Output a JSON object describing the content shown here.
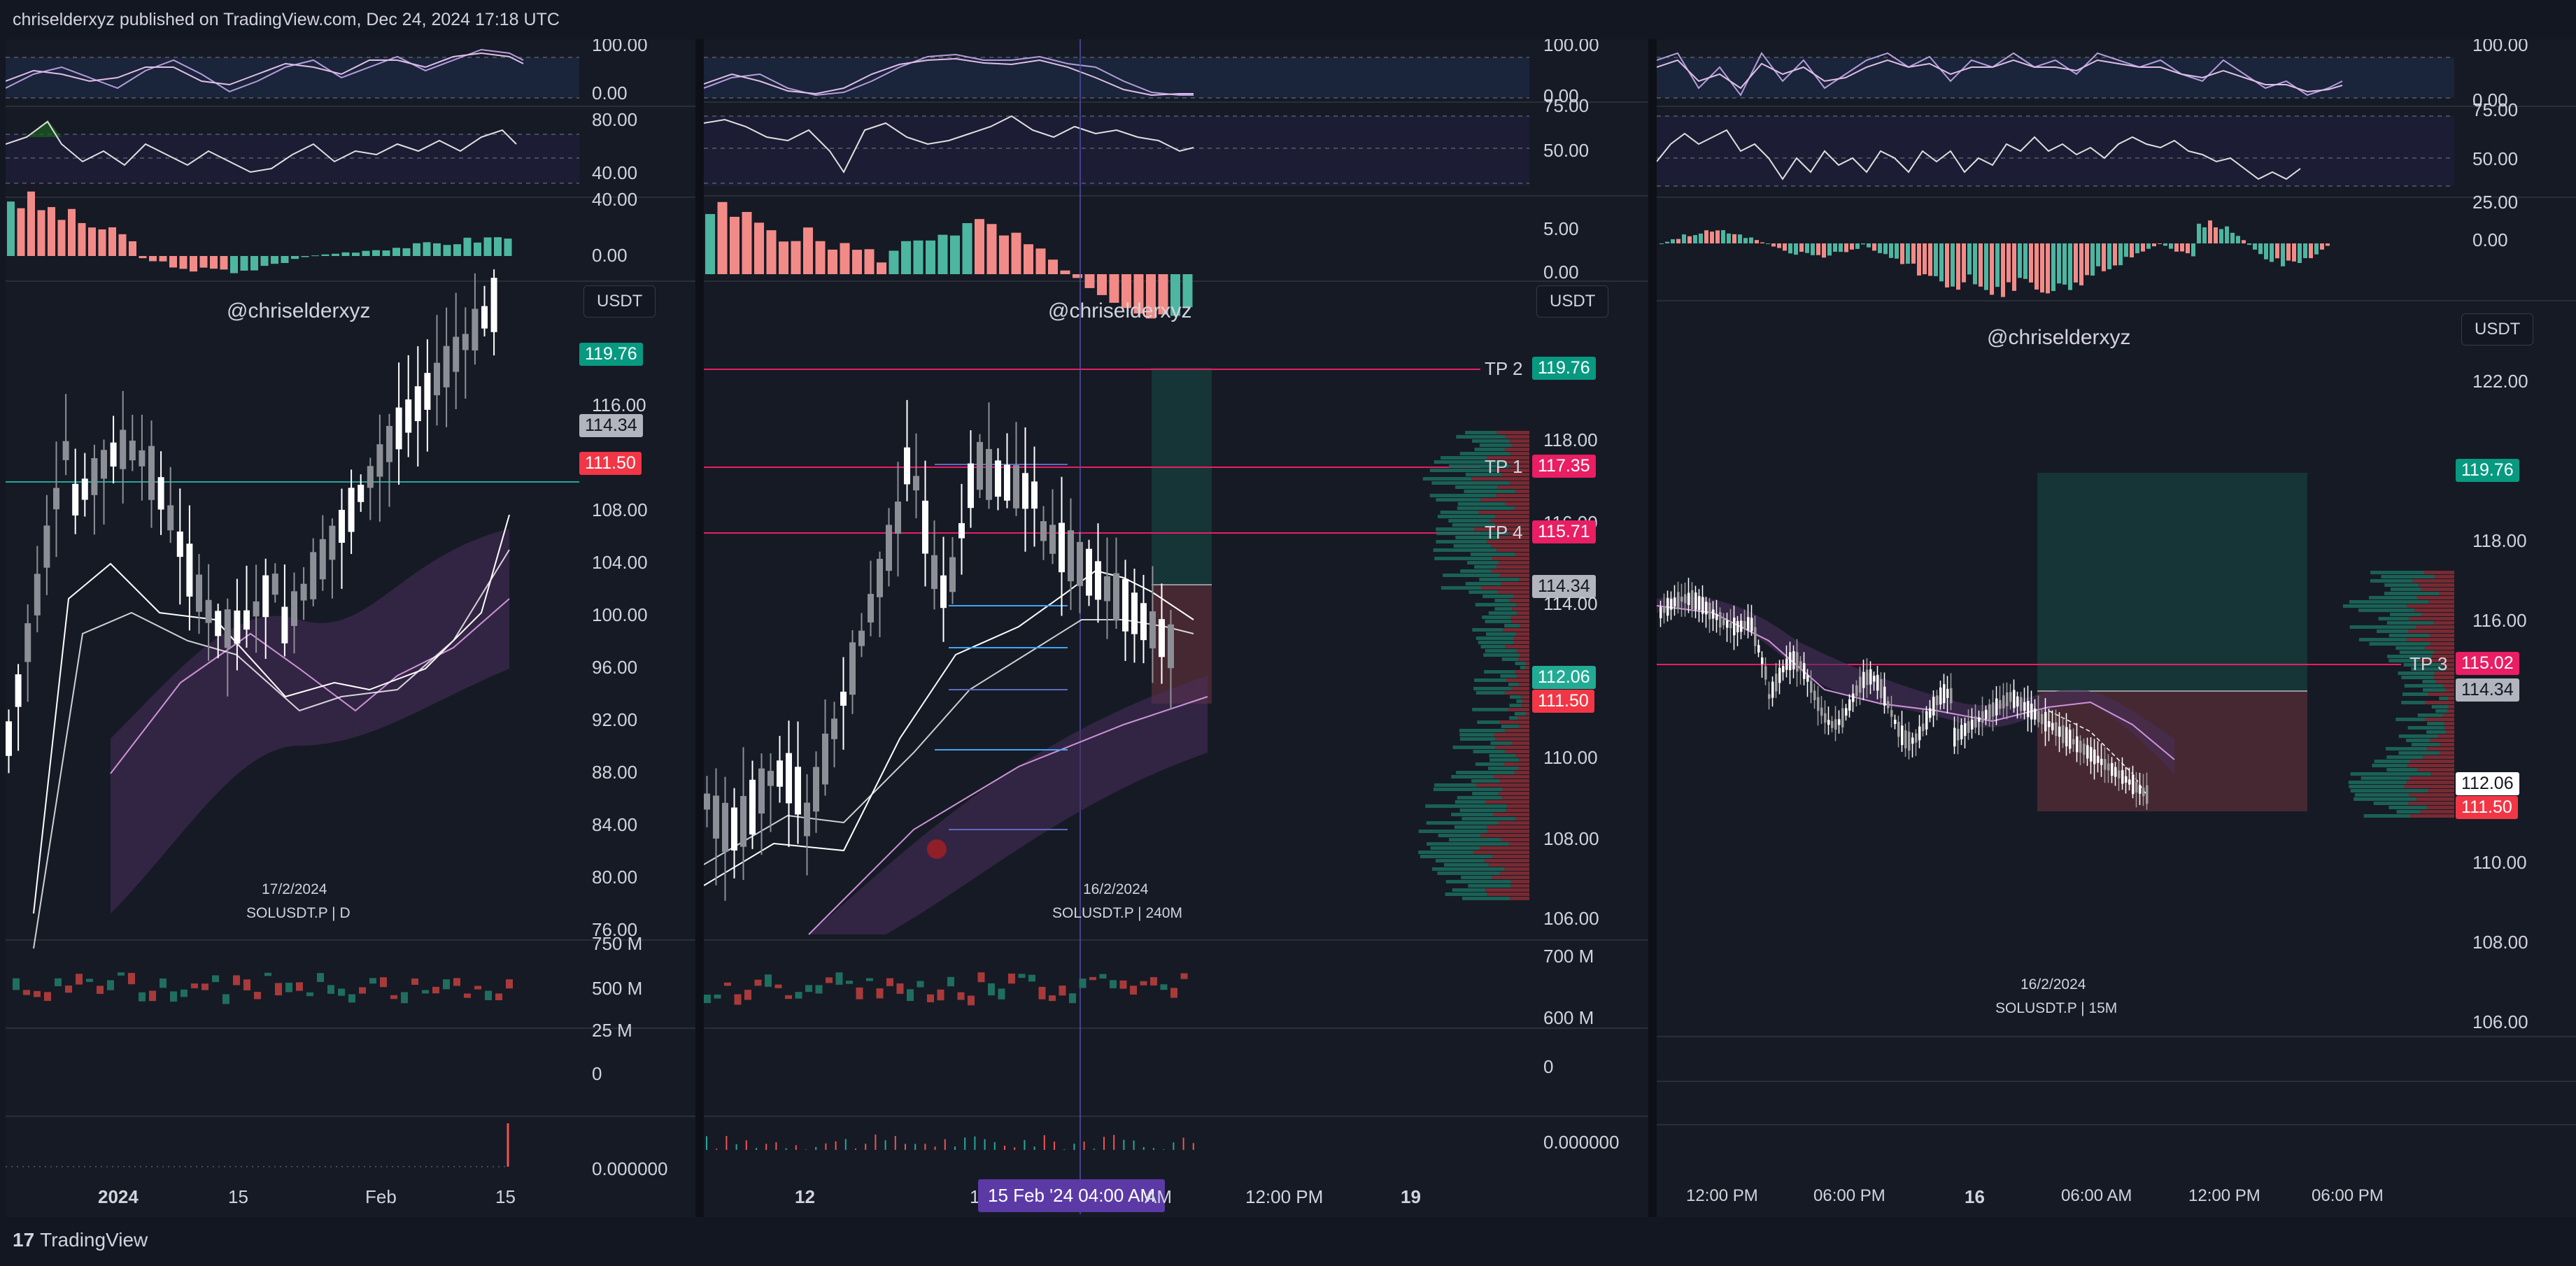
{
  "header": {
    "publish_text": "chriselderxyz published on TradingView.com, Dec 24, 2024 17:18 UTC"
  },
  "footer": {
    "brand": "TradingView",
    "logo_glyph": "17"
  },
  "colors": {
    "bg": "#131722",
    "up": "#26a69a",
    "down": "#ef5350",
    "green": "#089981",
    "red": "#f23645",
    "pink": "#e91e63",
    "purple": "#9c27b0"
  },
  "panels": [
    {
      "handle": "@chriselderxyz",
      "currency": "USDT",
      "date_label": "17/2/2024",
      "symbol_label": "SOLUSDT.P | D",
      "rsi_axis": [
        "100.00",
        "0.00"
      ],
      "ind2_axis": [
        "80.00",
        "40.00"
      ],
      "hist_axis": [
        "40.00",
        "0.00"
      ],
      "price_axis": [
        "116.00",
        "108.00",
        "104.00",
        "100.00",
        "96.00",
        "92.00",
        "88.00",
        "84.00",
        "80.00",
        "76.00"
      ],
      "tags": [
        {
          "value": "119.76",
          "style": "green"
        },
        {
          "value": "114.34",
          "style": "gray"
        },
        {
          "value": "111.50",
          "style": "red"
        }
      ],
      "vol_axis": [
        "750 M",
        "500 M",
        "25 M",
        "0"
      ],
      "bottom_axis": [
        "0.000000"
      ],
      "time_axis": [
        "2024",
        "15",
        "Feb",
        "15"
      ]
    },
    {
      "handle": "@chriselderxyz",
      "currency": "USDT",
      "date_label": "16/2/2024",
      "symbol_label": "SOLUSDT.P | 240M",
      "rsi_axis": [
        "100.00",
        "0.00"
      ],
      "ind2_axis": [
        "75.00",
        "50.00"
      ],
      "hist_axis": [
        "5.00",
        "0.00"
      ],
      "price_axis": [
        "118.00",
        "116.00",
        "114.00",
        "110.00",
        "108.00",
        "106.00"
      ],
      "lines": [
        {
          "label": "TP 2",
          "value": "119.76",
          "style": "green"
        },
        {
          "label": "TP 1",
          "value": "117.35",
          "style": "pink"
        },
        {
          "label": "TP 4",
          "value": "115.71",
          "style": "pink"
        }
      ],
      "tags": [
        {
          "value": "114.34",
          "style": "gray"
        },
        {
          "value": "112.06",
          "style": "teal"
        },
        {
          "value": "111.50",
          "style": "red"
        }
      ],
      "vol_axis": [
        "700 M",
        "600 M",
        "0"
      ],
      "bottom_axis": [
        "0.000000"
      ],
      "time_axis": [
        "12",
        "14",
        "15 Feb '24",
        "04:00 AM",
        "AM",
        "12:00 PM",
        "19"
      ],
      "crosshair_label": "15 Feb '24   04:00 AM"
    },
    {
      "handle": "@chriselderxyz",
      "currency": "USDT",
      "date_label": "16/2/2024",
      "symbol_label": "SOLUSDT.P | 15M",
      "rsi_axis": [
        "100.00",
        "0.00"
      ],
      "ind2_axis": [
        "75.00",
        "50.00",
        "25.00"
      ],
      "hist_axis": [
        "0.00"
      ],
      "price_axis": [
        "122.00",
        "118.00",
        "116.00",
        "110.00",
        "108.00",
        "106.00"
      ],
      "lines": [
        {
          "label": "TP 3",
          "value": "115.02",
          "style": "pink"
        }
      ],
      "tags": [
        {
          "value": "119.76",
          "style": "green"
        },
        {
          "value": "114.34",
          "style": "gray"
        },
        {
          "value": "112.06",
          "style": "white"
        },
        {
          "value": "111.50",
          "style": "red"
        }
      ],
      "time_axis": [
        "12:00 PM",
        "06:00 PM",
        "16",
        "06:00 AM",
        "12:00 PM",
        "06:00 PM"
      ]
    }
  ]
}
